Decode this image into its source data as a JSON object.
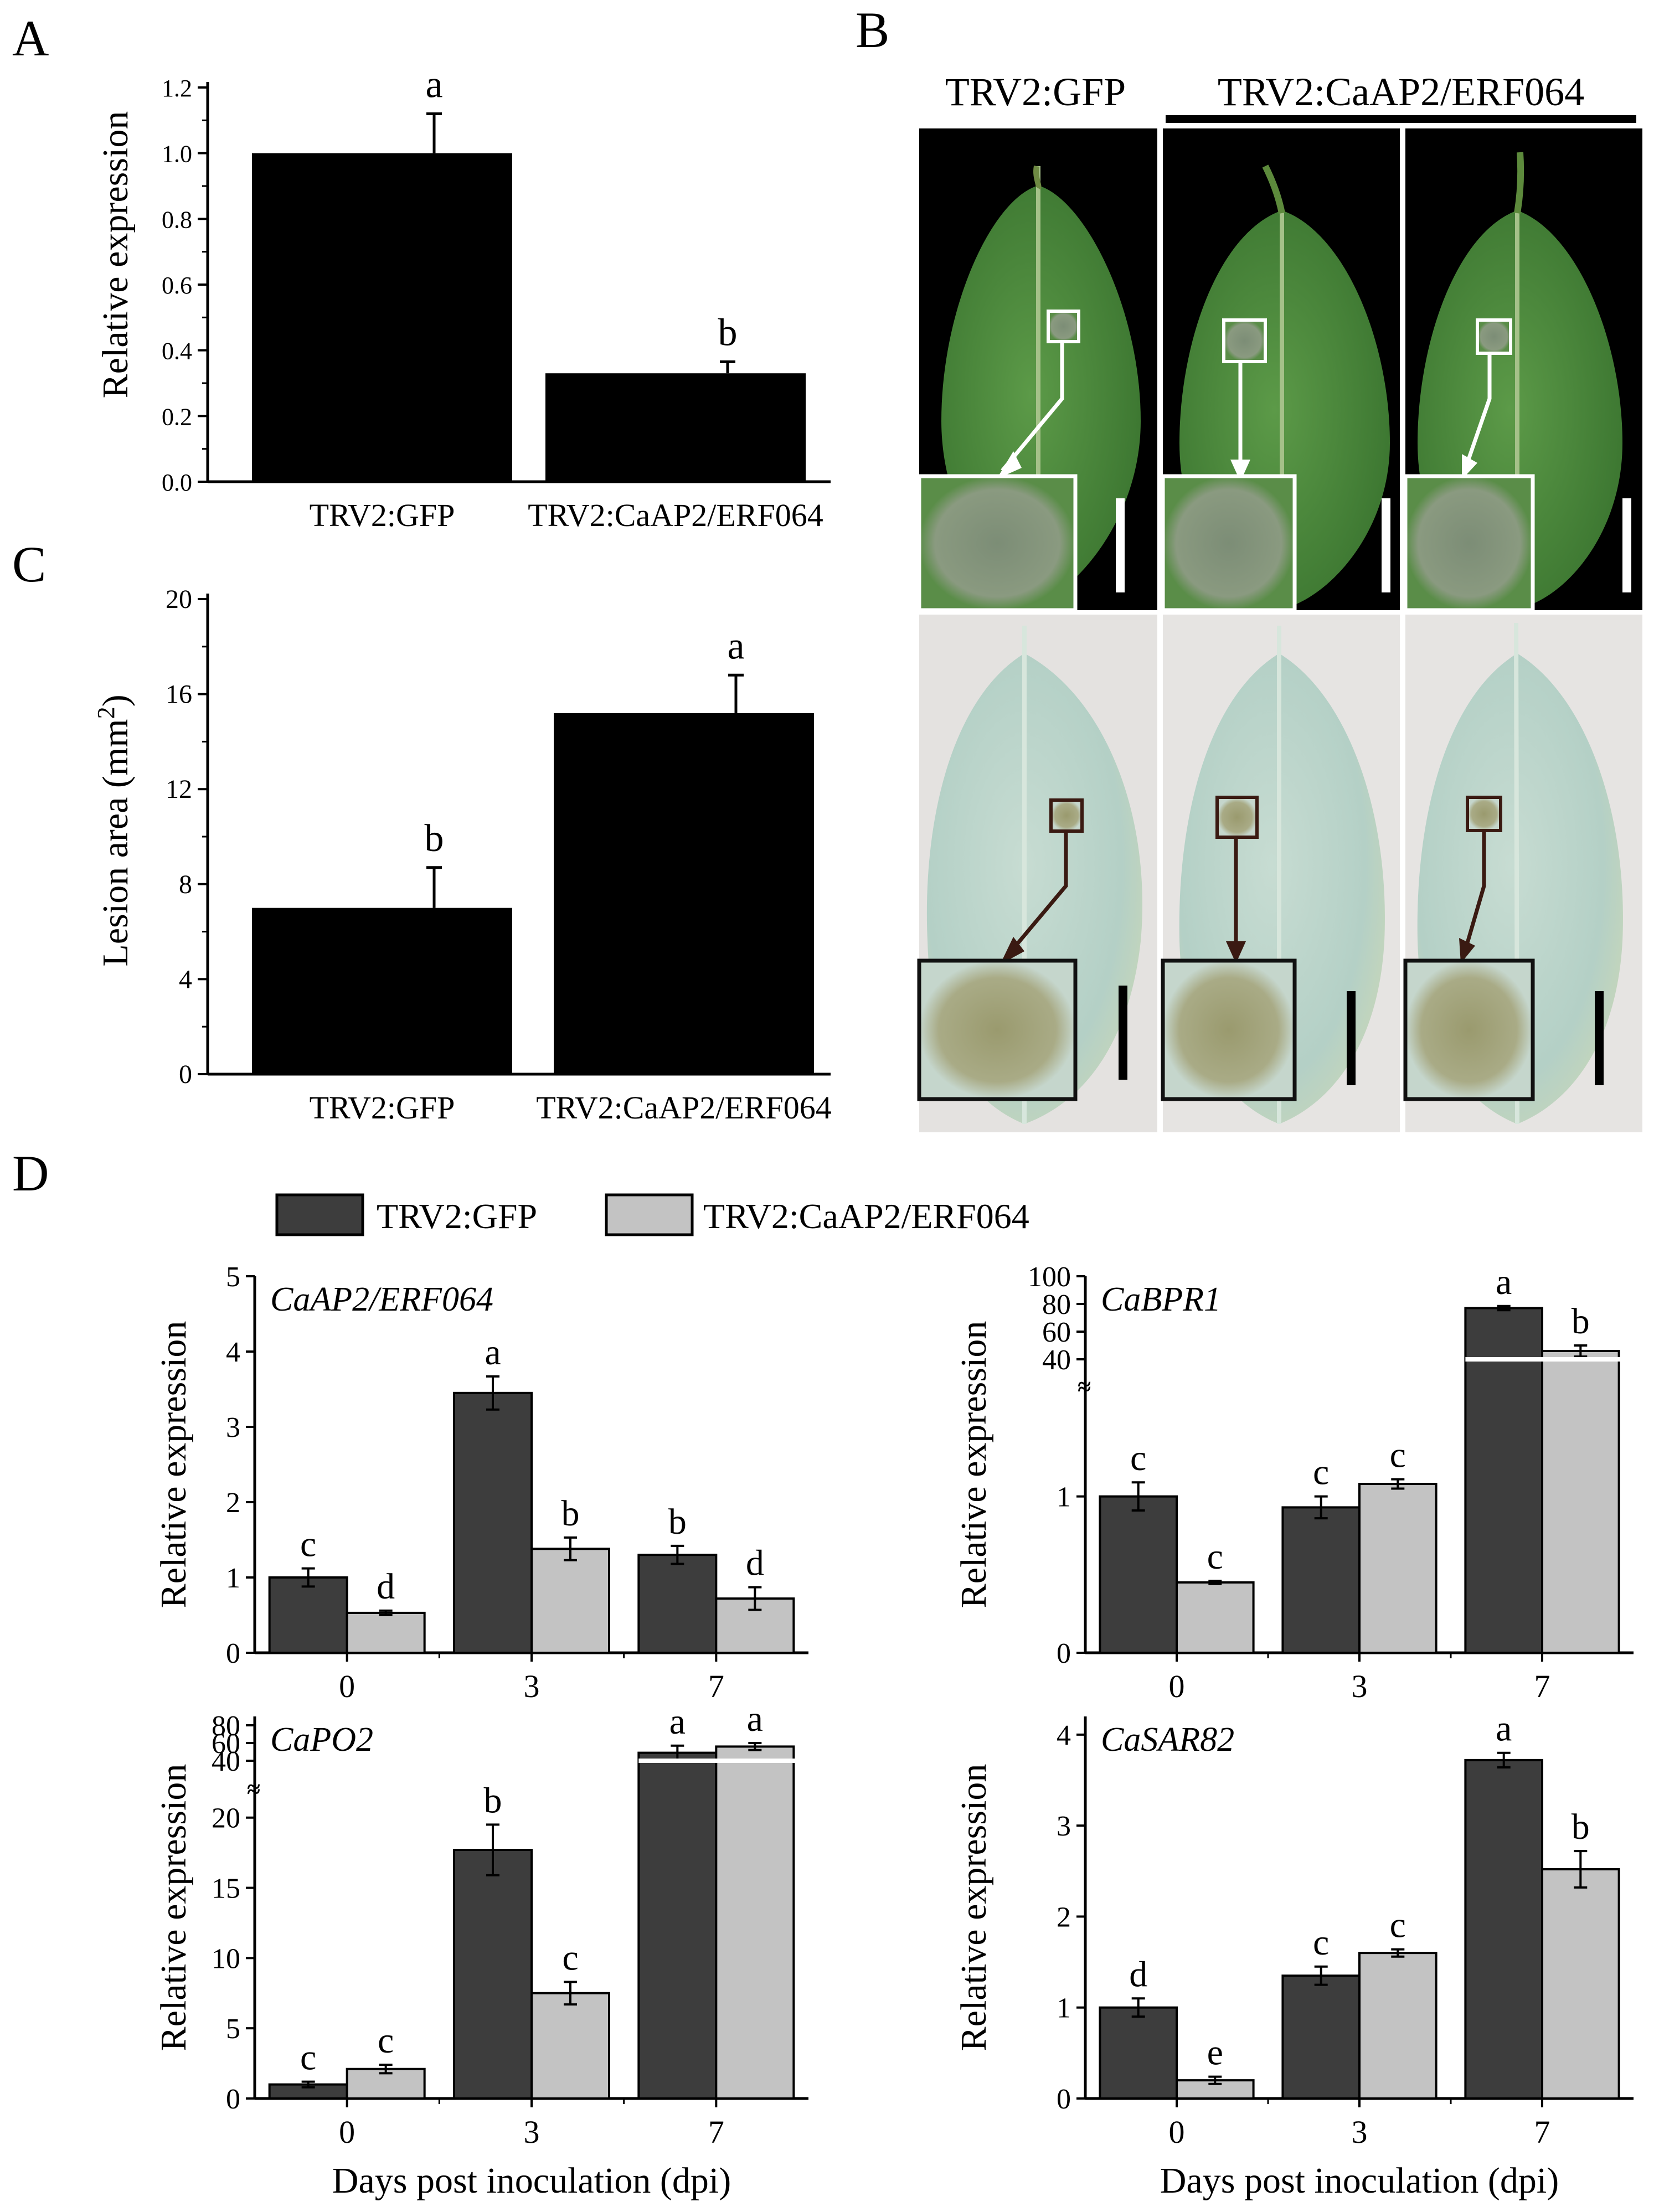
{
  "panels": {
    "A": {
      "letter": "A",
      "chart_type": "bar",
      "ylabel": "Relative expression",
      "ylim": [
        0,
        1.2
      ],
      "yticks": [
        0.0,
        0.2,
        0.4,
        0.6,
        0.8,
        1.0,
        1.2
      ],
      "ytick_labels": [
        "0.0",
        "0.2",
        "0.4",
        "0.6",
        "0.8",
        "1.0",
        "1.2"
      ],
      "categories": [
        "TRV2:GFP",
        "TRV2:CaAP2/ERF064"
      ],
      "values": [
        1.0,
        0.33
      ],
      "errors": [
        0.12,
        0.035
      ],
      "sig_letters": [
        "a",
        "b"
      ],
      "bar_color": "#000000"
    },
    "C": {
      "letter": "C",
      "chart_type": "bar",
      "ylabel_main": "Lesion area (mm",
      "ylabel_sup": "2",
      "ylabel_end": ")",
      "ylim": [
        0,
        20
      ],
      "yticks": [
        0,
        4,
        8,
        12,
        16,
        20
      ],
      "ytick_labels": [
        "0",
        "4",
        "8",
        "12",
        "16",
        "20"
      ],
      "categories": [
        "TRV2:GFP",
        "TRV2:CaAP2/ERF064"
      ],
      "values": [
        7.0,
        15.2
      ],
      "errors": [
        1.7,
        1.6
      ],
      "sig_letters": [
        "b",
        "a"
      ],
      "bar_color": "#000000"
    },
    "B": {
      "letter": "B",
      "header_left": "TRV2:GFP",
      "header_right": "TRV2:CaAP2/ERF064",
      "row_colors": {
        "top_background": "#000000",
        "bottom_background": "#e4e2e0",
        "leaf_green": "#4d8a3c",
        "leaf_stained": "#b4d0c6"
      }
    },
    "D": {
      "letter": "D",
      "legend": [
        {
          "label": "TRV2:GFP",
          "color": "#3d3d3d"
        },
        {
          "label": "TRV2:CaAP2/ERF064",
          "color": "#c3c3c3"
        }
      ],
      "xlabel": "Days post inoculation (dpi)",
      "ylabel": "Relative expression",
      "categories": [
        "0",
        "3",
        "7"
      ]
    }
  },
  "chart_data": [
    {
      "id": "A",
      "type": "bar",
      "title": "",
      "categories": [
        "TRV2:GFP",
        "TRV2:CaAP2/ERF064"
      ],
      "values": [
        1.0,
        0.33
      ],
      "errors": [
        0.12,
        0.035
      ],
      "xlabel": "",
      "ylabel": "Relative expression",
      "ylim": [
        0,
        1.2
      ]
    },
    {
      "id": "C",
      "type": "bar",
      "title": "",
      "categories": [
        "TRV2:GFP",
        "TRV2:CaAP2/ERF064"
      ],
      "values": [
        7.0,
        15.2
      ],
      "errors": [
        1.7,
        1.6
      ],
      "xlabel": "",
      "ylabel": "Lesion area (mm2)",
      "ylim": [
        0,
        20
      ]
    },
    {
      "id": "D1",
      "type": "bar",
      "title": "CaAP2/ERF064",
      "categories": [
        "0",
        "3",
        "7"
      ],
      "series": [
        {
          "name": "TRV2:GFP",
          "values": [
            1.0,
            3.45,
            1.3
          ],
          "errors": [
            0.12,
            0.22,
            0.12
          ],
          "letters": [
            "c",
            "a",
            "b"
          ]
        },
        {
          "name": "TRV2:CaAP2/ERF064",
          "values": [
            0.53,
            1.38,
            0.72
          ],
          "errors": [
            0.03,
            0.15,
            0.15
          ],
          "letters": [
            "d",
            "b",
            "d"
          ]
        }
      ],
      "xlabel": "",
      "ylabel": "Relative expression",
      "ylim": [
        0,
        5
      ],
      "yticks": [
        0,
        1,
        2,
        3,
        4,
        5
      ],
      "ytick_labels": [
        "0",
        "1",
        "2",
        "3",
        "4",
        "5"
      ]
    },
    {
      "id": "D2",
      "type": "bar",
      "title": "CaBPR1",
      "categories": [
        "0",
        "3",
        "7"
      ],
      "series": [
        {
          "name": "TRV2:GFP",
          "values": [
            1.0,
            0.93,
            77
          ],
          "errors": [
            0.09,
            0.07,
            1.5
          ],
          "letters": [
            "c",
            "c",
            "a"
          ]
        },
        {
          "name": "TRV2:CaAP2/ERF064",
          "values": [
            0.45,
            1.08,
            46
          ],
          "errors": [
            0.01,
            0.03,
            4
          ],
          "letters": [
            "c",
            "c",
            "b"
          ]
        }
      ],
      "xlabel": "",
      "ylabel": "Relative expression",
      "axis_break": {
        "lower": [
          0,
          1.7
        ],
        "upper": [
          40,
          100
        ]
      },
      "yticks": [
        0,
        1,
        40,
        60,
        80,
        100
      ],
      "ytick_labels": [
        "0",
        "1",
        "40",
        "60",
        "80",
        "100"
      ]
    },
    {
      "id": "D3",
      "type": "bar",
      "title": "CaPO2",
      "categories": [
        "0",
        "3",
        "7"
      ],
      "series": [
        {
          "name": "TRV2:GFP",
          "values": [
            1.0,
            17.7,
            49
          ],
          "errors": [
            0.2,
            1.8,
            8
          ],
          "letters": [
            "c",
            "b",
            "a"
          ]
        },
        {
          "name": "TRV2:CaAP2/ERF064",
          "values": [
            2.1,
            7.5,
            56
          ],
          "errors": [
            0.3,
            0.8,
            4
          ],
          "letters": [
            "c",
            "c",
            "a"
          ]
        }
      ],
      "xlabel": "Days post inoculation (dpi)",
      "ylabel": "Relative expression",
      "axis_break": {
        "lower": [
          0,
          22
        ],
        "upper": [
          40,
          90
        ]
      },
      "yticks": [
        0,
        5,
        10,
        15,
        20,
        40,
        60,
        80
      ],
      "ytick_labels": [
        "0",
        "5",
        "10",
        "15",
        "20",
        "40",
        "60",
        "80"
      ]
    },
    {
      "id": "D4",
      "type": "bar",
      "title": "CaSAR82",
      "categories": [
        "0",
        "3",
        "7"
      ],
      "series": [
        {
          "name": "TRV2:GFP",
          "values": [
            1.0,
            1.35,
            3.72
          ],
          "errors": [
            0.1,
            0.1,
            0.08
          ],
          "letters": [
            "d",
            "c",
            "a"
          ]
        },
        {
          "name": "TRV2:CaAP2/ERF064",
          "values": [
            0.2,
            1.6,
            2.52
          ],
          "errors": [
            0.04,
            0.04,
            0.2
          ],
          "letters": [
            "e",
            "c",
            "b"
          ]
        }
      ],
      "xlabel": "Days post inoculation (dpi)",
      "ylabel": "Relative expression",
      "ylim": [
        0,
        4.2
      ],
      "yticks": [
        0,
        1,
        2,
        3,
        4
      ],
      "ytick_labels": [
        "0",
        "1",
        "2",
        "3",
        "4"
      ]
    }
  ]
}
